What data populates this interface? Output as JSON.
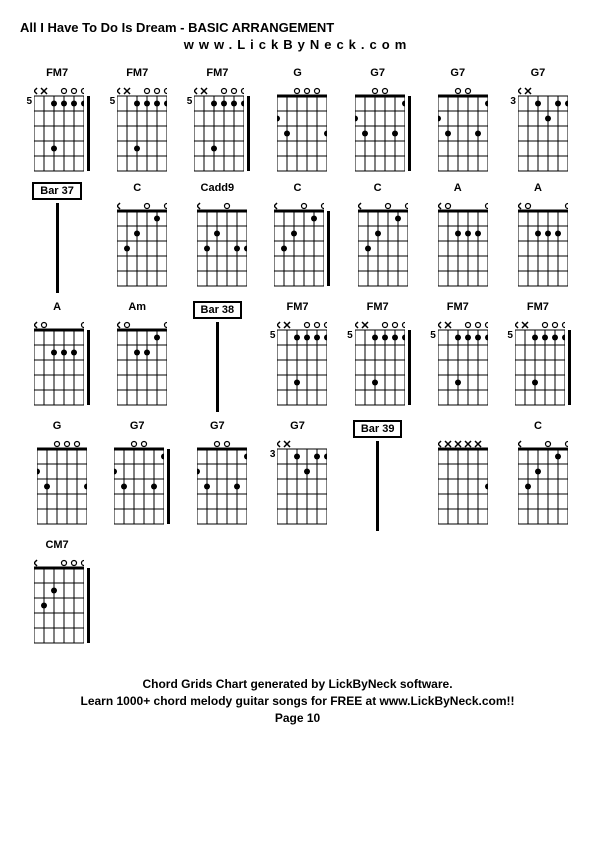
{
  "title": "All I Have To Do Is Dream - BASIC ARRANGEMENT",
  "subtitle": "www.LickByNeck.com",
  "footer": {
    "line1": "Chord Grids Chart generated by LickByNeck software.",
    "line2": "Learn 1000+ chord melody guitar songs for FREE at www.LickByNeck.com!!",
    "line3": "Page 10"
  },
  "style": {
    "grid_cols": 7,
    "diagram": {
      "width": 50,
      "height": 90,
      "strings": 6,
      "frets": 5,
      "string_spacing": 10,
      "fret_spacing": 15,
      "top_margin": 12,
      "nut_height": 3,
      "dot_radius": 3,
      "open_radius": 2.5,
      "line_color": "#000000",
      "dot_color": "#000000",
      "bg_color": "#ffffff"
    },
    "bar_line_height": 90
  },
  "cells": [
    {
      "type": "chord",
      "name": "FM7",
      "fret": "5",
      "markers": [
        "x",
        "x",
        "",
        "o",
        "o",
        "o"
      ],
      "dots": [
        [
          1,
          3
        ],
        [
          1,
          4
        ],
        [
          1,
          5
        ],
        [
          1,
          6
        ],
        [
          4,
          3
        ]
      ],
      "tick": true
    },
    {
      "type": "chord",
      "name": "FM7",
      "fret": "5",
      "markers": [
        "x",
        "x",
        "",
        "o",
        "o",
        "o"
      ],
      "dots": [
        [
          1,
          3
        ],
        [
          1,
          4
        ],
        [
          1,
          5
        ],
        [
          1,
          6
        ],
        [
          4,
          3
        ]
      ],
      "tick": false
    },
    {
      "type": "chord",
      "name": "FM7",
      "fret": "5",
      "markers": [
        "x",
        "x",
        "",
        "o",
        "o",
        "o"
      ],
      "dots": [
        [
          1,
          3
        ],
        [
          1,
          4
        ],
        [
          1,
          5
        ],
        [
          1,
          6
        ],
        [
          4,
          3
        ]
      ],
      "tick": true
    },
    {
      "type": "chord",
      "name": "G",
      "fret": "",
      "markers": [
        "",
        "",
        "o",
        "o",
        "o",
        ""
      ],
      "dots": [
        [
          2,
          1
        ],
        [
          3,
          2
        ],
        [
          3,
          6
        ]
      ],
      "tick": false
    },
    {
      "type": "chord",
      "name": "G7",
      "fret": "",
      "markers": [
        "",
        "",
        "o",
        "o",
        "",
        ""
      ],
      "dots": [
        [
          1,
          6
        ],
        [
          2,
          1
        ],
        [
          3,
          2
        ],
        [
          3,
          5
        ]
      ],
      "tick": true
    },
    {
      "type": "chord",
      "name": "G7",
      "fret": "",
      "markers": [
        "",
        "",
        "o",
        "o",
        "",
        ""
      ],
      "dots": [
        [
          1,
          6
        ],
        [
          2,
          1
        ],
        [
          3,
          2
        ],
        [
          3,
          5
        ]
      ],
      "tick": false
    },
    {
      "type": "chord",
      "name": "G7",
      "fret": "3",
      "markers": [
        "x",
        "x",
        "",
        "",
        "",
        ""
      ],
      "dots": [
        [
          1,
          3
        ],
        [
          1,
          5
        ],
        [
          1,
          6
        ],
        [
          2,
          4
        ]
      ],
      "tick": false
    },
    {
      "type": "bar",
      "label": "Bar 37"
    },
    {
      "type": "chord",
      "name": "C",
      "fret": "",
      "markers": [
        "x",
        "",
        "",
        "o",
        "",
        "o"
      ],
      "dots": [
        [
          1,
          5
        ],
        [
          2,
          3
        ],
        [
          3,
          2
        ]
      ],
      "tick": false
    },
    {
      "type": "chord",
      "name": "Cadd9",
      "fret": "",
      "markers": [
        "x",
        "",
        "",
        "o",
        "",
        ""
      ],
      "dots": [
        [
          2,
          3
        ],
        [
          3,
          2
        ],
        [
          3,
          5
        ],
        [
          3,
          6
        ]
      ],
      "tick": false
    },
    {
      "type": "chord",
      "name": "C",
      "fret": "",
      "markers": [
        "x",
        "",
        "",
        "o",
        "",
        "o"
      ],
      "dots": [
        [
          1,
          5
        ],
        [
          2,
          3
        ],
        [
          3,
          2
        ]
      ],
      "tick": true
    },
    {
      "type": "chord",
      "name": "C",
      "fret": "",
      "markers": [
        "x",
        "",
        "",
        "o",
        "",
        "o"
      ],
      "dots": [
        [
          1,
          5
        ],
        [
          2,
          3
        ],
        [
          3,
          2
        ]
      ],
      "tick": false
    },
    {
      "type": "chord",
      "name": "A",
      "fret": "",
      "markers": [
        "x",
        "o",
        "",
        "",
        "",
        "o"
      ],
      "dots": [
        [
          2,
          3
        ],
        [
          2,
          4
        ],
        [
          2,
          5
        ]
      ],
      "tick": false
    },
    {
      "type": "chord",
      "name": "A",
      "fret": "",
      "markers": [
        "x",
        "o",
        "",
        "",
        "",
        "o"
      ],
      "dots": [
        [
          2,
          3
        ],
        [
          2,
          4
        ],
        [
          2,
          5
        ]
      ],
      "tick": false
    },
    {
      "type": "chord",
      "name": "A",
      "fret": "",
      "markers": [
        "x",
        "o",
        "",
        "",
        "",
        "o"
      ],
      "dots": [
        [
          2,
          3
        ],
        [
          2,
          4
        ],
        [
          2,
          5
        ]
      ],
      "tick": true
    },
    {
      "type": "chord",
      "name": "Am",
      "fret": "",
      "markers": [
        "x",
        "o",
        "",
        "",
        "",
        "o"
      ],
      "dots": [
        [
          1,
          5
        ],
        [
          2,
          3
        ],
        [
          2,
          4
        ]
      ],
      "tick": false
    },
    {
      "type": "bar",
      "label": "Bar 38"
    },
    {
      "type": "chord",
      "name": "FM7",
      "fret": "5",
      "markers": [
        "x",
        "x",
        "",
        "o",
        "o",
        "o"
      ],
      "dots": [
        [
          1,
          3
        ],
        [
          1,
          4
        ],
        [
          1,
          5
        ],
        [
          1,
          6
        ],
        [
          4,
          3
        ]
      ],
      "tick": false
    },
    {
      "type": "chord",
      "name": "FM7",
      "fret": "5",
      "markers": [
        "x",
        "x",
        "",
        "o",
        "o",
        "o"
      ],
      "dots": [
        [
          1,
          3
        ],
        [
          1,
          4
        ],
        [
          1,
          5
        ],
        [
          1,
          6
        ],
        [
          4,
          3
        ]
      ],
      "tick": true
    },
    {
      "type": "chord",
      "name": "FM7",
      "fret": "5",
      "markers": [
        "x",
        "x",
        "",
        "o",
        "o",
        "o"
      ],
      "dots": [
        [
          1,
          3
        ],
        [
          1,
          4
        ],
        [
          1,
          5
        ],
        [
          1,
          6
        ],
        [
          4,
          3
        ]
      ],
      "tick": false
    },
    {
      "type": "chord",
      "name": "FM7",
      "fret": "5",
      "markers": [
        "x",
        "x",
        "",
        "o",
        "o",
        "o"
      ],
      "dots": [
        [
          1,
          3
        ],
        [
          1,
          4
        ],
        [
          1,
          5
        ],
        [
          1,
          6
        ],
        [
          4,
          3
        ]
      ],
      "tick": true
    },
    {
      "type": "chord",
      "name": "G",
      "fret": "",
      "markers": [
        "",
        "",
        "o",
        "o",
        "o",
        ""
      ],
      "dots": [
        [
          2,
          1
        ],
        [
          3,
          2
        ],
        [
          3,
          6
        ]
      ],
      "tick": false
    },
    {
      "type": "chord",
      "name": "G7",
      "fret": "",
      "markers": [
        "",
        "",
        "o",
        "o",
        "",
        ""
      ],
      "dots": [
        [
          1,
          6
        ],
        [
          2,
          1
        ],
        [
          3,
          2
        ],
        [
          3,
          5
        ]
      ],
      "tick": true
    },
    {
      "type": "chord",
      "name": "G7",
      "fret": "",
      "markers": [
        "",
        "",
        "o",
        "o",
        "",
        ""
      ],
      "dots": [
        [
          1,
          6
        ],
        [
          2,
          1
        ],
        [
          3,
          2
        ],
        [
          3,
          5
        ]
      ],
      "tick": false
    },
    {
      "type": "chord",
      "name": "G7",
      "fret": "3",
      "markers": [
        "x",
        "x",
        "",
        "",
        "",
        ""
      ],
      "dots": [
        [
          1,
          3
        ],
        [
          1,
          5
        ],
        [
          1,
          6
        ],
        [
          2,
          4
        ]
      ],
      "tick": false
    },
    {
      "type": "bar",
      "label": "Bar 39"
    },
    {
      "type": "chord",
      "name": "",
      "fret": "",
      "markers": [
        "x",
        "x",
        "x",
        "x",
        "x",
        ""
      ],
      "dots": [
        [
          3,
          6
        ]
      ],
      "tick": false
    },
    {
      "type": "chord",
      "name": "C",
      "fret": "",
      "markers": [
        "x",
        "",
        "",
        "o",
        "",
        "o"
      ],
      "dots": [
        [
          1,
          5
        ],
        [
          2,
          3
        ],
        [
          3,
          2
        ]
      ],
      "tick": false
    },
    {
      "type": "chord",
      "name": "CM7",
      "fret": "",
      "markers": [
        "x",
        "",
        "",
        "o",
        "o",
        "o"
      ],
      "dots": [
        [
          2,
          3
        ],
        [
          3,
          2
        ]
      ],
      "tick": true
    }
  ]
}
